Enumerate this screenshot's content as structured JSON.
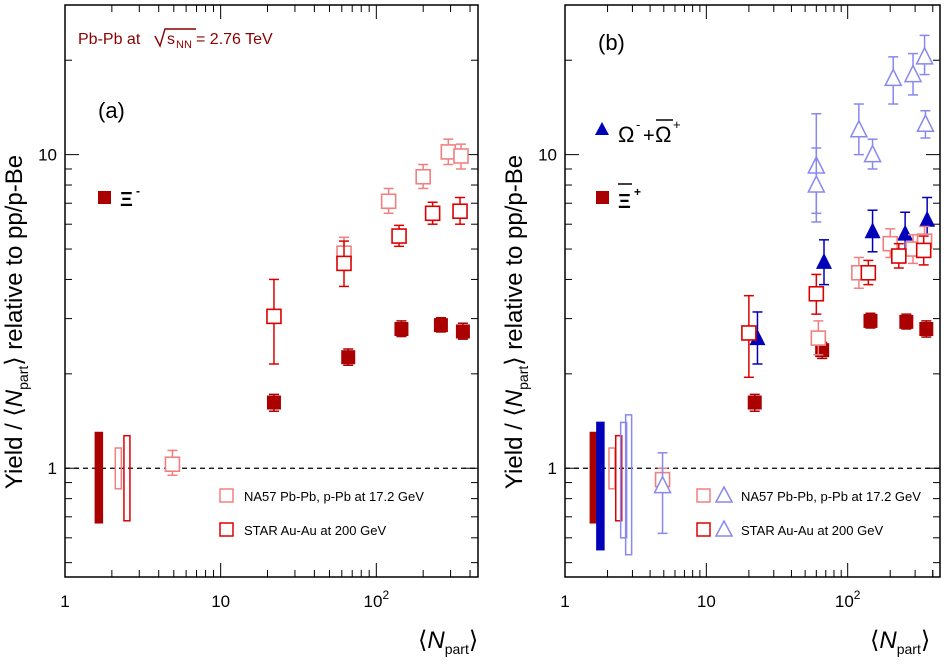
{
  "colors": {
    "alice": "#aa0000",
    "na57_xi": "#f08080",
    "star_xi": "#dd0000",
    "alice_omega": "#0000bb",
    "na57_omega": "#8888ee",
    "axis": "#000000",
    "energy_label": "#8b0000"
  },
  "labels": {
    "ylabel_prefix": "Yield / ⟨",
    "ylabel_var": "N",
    "ylabel_sub": "part",
    "ylabel_suffix": "⟩ relative to pp/p-Be",
    "xlabel_open": "⟨",
    "xlabel_var": "N",
    "xlabel_sub": "part",
    "xlabel_close": "⟩",
    "energy_pre": "Pb-Pb at ",
    "energy_s": "s",
    "energy_sub": "NN",
    "energy_post": " = 2.76 TeV",
    "tag_a": "(a)",
    "tag_b": "(b)",
    "leg_xi_minus": "Ξ",
    "leg_xi_minus_sup": "-",
    "leg_xi_plus": "Ξ",
    "leg_xi_plus_sup": "+",
    "leg_omega_a": "Ω",
    "leg_omega_a_sup": "-",
    "leg_omega_plus": "+",
    "leg_omega_b": "Ω",
    "leg_omega_b_sup": "+",
    "leg_na57": "NA57 Pb-Pb, p-Pb at 17.2 GeV",
    "leg_star": "STAR Au-Au at 200 GeV"
  },
  "chart_data": [
    {
      "panel": "a",
      "type": "scatter",
      "xscale": "log",
      "yscale": "log",
      "xlim": [
        1,
        450
      ],
      "ylim": [
        0.45,
        30
      ],
      "xticks": [
        {
          "v": 1,
          "label": "1"
        },
        {
          "v": 10,
          "label": "10"
        },
        {
          "v": 100,
          "label": "10",
          "sup": "2"
        }
      ],
      "yticks": [
        {
          "v": 1,
          "label": "1"
        },
        {
          "v": 10,
          "label": "10"
        }
      ],
      "reference_line": 1,
      "series": [
        {
          "name": "Ξ- (ALICE)",
          "marker": "filled-square",
          "color_key": "alice",
          "points": [
            {
              "x": 22,
              "y": 1.62,
              "lo": 1.52,
              "hi": 1.72
            },
            {
              "x": 66,
              "y": 2.26,
              "lo": 2.13,
              "hi": 2.4
            },
            {
              "x": 145,
              "y": 2.78,
              "lo": 2.63,
              "hi": 2.95
            },
            {
              "x": 260,
              "y": 2.86,
              "lo": 2.72,
              "hi": 3.02
            },
            {
              "x": 360,
              "y": 2.73,
              "lo": 2.58,
              "hi": 2.9
            }
          ]
        },
        {
          "name": "NA57 Ξ-",
          "marker": "open-square",
          "color_key": "na57_xi",
          "points": [
            {
              "x": 4.9,
              "y": 1.03,
              "lo": 0.95,
              "hi": 1.14
            },
            {
              "x": 62,
              "y": 4.85,
              "lo": 4.3,
              "hi": 5.45
            },
            {
              "x": 120,
              "y": 7.1,
              "lo": 6.5,
              "hi": 7.8
            },
            {
              "x": 200,
              "y": 8.5,
              "lo": 7.8,
              "hi": 9.3
            },
            {
              "x": 290,
              "y": 10.2,
              "lo": 9.3,
              "hi": 11.2
            },
            {
              "x": 350,
              "y": 9.9,
              "lo": 9.0,
              "hi": 10.8
            }
          ]
        },
        {
          "name": "STAR Ξ-",
          "marker": "open-square",
          "color_key": "star_xi",
          "points": [
            {
              "x": 22,
              "y": 3.05,
              "lo": 2.15,
              "hi": 4.0
            },
            {
              "x": 62,
              "y": 4.5,
              "lo": 3.8,
              "hi": 5.3
            },
            {
              "x": 140,
              "y": 5.5,
              "lo": 5.1,
              "hi": 5.95
            },
            {
              "x": 230,
              "y": 6.5,
              "lo": 6.0,
              "hi": 7.05
            },
            {
              "x": 345,
              "y": 6.6,
              "lo": 6.0,
              "hi": 7.3
            }
          ]
        }
      ],
      "normalization_boxes": [
        {
          "x": 1.65,
          "lo": 0.67,
          "hi": 1.3,
          "color_key": "alice",
          "style": "filled"
        },
        {
          "x": 2.2,
          "lo": 0.86,
          "hi": 1.16,
          "color_key": "na57_xi",
          "style": "open"
        },
        {
          "x": 2.5,
          "lo": 0.68,
          "hi": 1.27,
          "color_key": "star_xi",
          "style": "open"
        }
      ]
    },
    {
      "panel": "b",
      "type": "scatter",
      "xscale": "log",
      "yscale": "log",
      "xlim": [
        1,
        450
      ],
      "ylim": [
        0.45,
        30
      ],
      "xticks": [
        {
          "v": 1,
          "label": "1"
        },
        {
          "v": 10,
          "label": "10"
        },
        {
          "v": 100,
          "label": "10",
          "sup": "2"
        }
      ],
      "yticks": [
        {
          "v": 1,
          "label": "1"
        },
        {
          "v": 10,
          "label": "10"
        }
      ],
      "reference_line": 1,
      "series": [
        {
          "name": "Ξ+ (ALICE)",
          "marker": "filled-square",
          "color_key": "alice",
          "points": [
            {
              "x": 22,
              "y": 1.62,
              "lo": 1.52,
              "hi": 1.72
            },
            {
              "x": 66,
              "y": 2.38,
              "lo": 2.24,
              "hi": 2.52
            },
            {
              "x": 145,
              "y": 2.95,
              "lo": 2.8,
              "hi": 3.12
            },
            {
              "x": 260,
              "y": 2.93,
              "lo": 2.78,
              "hi": 3.1
            },
            {
              "x": 360,
              "y": 2.78,
              "lo": 2.62,
              "hi": 2.95
            }
          ]
        },
        {
          "name": "Ω- + Ω+ (ALICE)",
          "marker": "filled-triangle",
          "color_key": "alice_omega",
          "points": [
            {
              "x": 23,
              "y": 2.6,
              "lo": 2.15,
              "hi": 3.15
            },
            {
              "x": 68,
              "y": 4.55,
              "lo": 3.85,
              "hi": 5.35
            },
            {
              "x": 150,
              "y": 5.7,
              "lo": 4.9,
              "hi": 6.65
            },
            {
              "x": 255,
              "y": 5.6,
              "lo": 4.8,
              "hi": 6.55
            },
            {
              "x": 365,
              "y": 6.2,
              "lo": 5.3,
              "hi": 7.3
            }
          ]
        },
        {
          "name": "NA57 Ξ+",
          "marker": "open-square",
          "color_key": "na57_xi",
          "points": [
            {
              "x": 4.9,
              "y": 0.92,
              "lo": 0.85,
              "hi": 1.0
            },
            {
              "x": 62,
              "y": 2.6,
              "lo": 2.3,
              "hi": 2.95
            },
            {
              "x": 120,
              "y": 4.2,
              "lo": 3.75,
              "hi": 4.7
            },
            {
              "x": 200,
              "y": 5.2,
              "lo": 4.7,
              "hi": 5.8
            },
            {
              "x": 290,
              "y": 5.0,
              "lo": 4.5,
              "hi": 5.55
            },
            {
              "x": 350,
              "y": 5.3,
              "lo": 4.8,
              "hi": 5.9
            }
          ]
        },
        {
          "name": "STAR Ξ+",
          "marker": "open-square",
          "color_key": "star_xi",
          "points": [
            {
              "x": 20,
              "y": 2.7,
              "lo": 1.95,
              "hi": 3.55
            },
            {
              "x": 60,
              "y": 3.6,
              "lo": 3.1,
              "hi": 4.15
            },
            {
              "x": 140,
              "y": 4.2,
              "lo": 3.85,
              "hi": 4.6
            },
            {
              "x": 230,
              "y": 4.75,
              "lo": 4.35,
              "hi": 5.2
            },
            {
              "x": 345,
              "y": 4.95,
              "lo": 4.45,
              "hi": 5.5
            }
          ]
        },
        {
          "name": "NA57 Ω",
          "marker": "open-triangle",
          "color_key": "na57_omega",
          "points": [
            {
              "x": 4.9,
              "y": 0.88,
              "lo": 0.62,
              "hi": 1.12
            },
            {
              "x": 60,
              "y": 9.2,
              "lo": 6.5,
              "hi": 13.5
            },
            {
              "x": 60,
              "y": 8.0,
              "lo": 6.1,
              "hi": 10.5
            },
            {
              "x": 120,
              "y": 12.0,
              "lo": 10.0,
              "hi": 14.5
            },
            {
              "x": 150,
              "y": 10.0,
              "lo": 9.0,
              "hi": 11.2
            },
            {
              "x": 210,
              "y": 17.5,
              "lo": 14.5,
              "hi": 20.5
            },
            {
              "x": 290,
              "y": 18.0,
              "lo": 15.5,
              "hi": 21.0
            },
            {
              "x": 350,
              "y": 20.5,
              "lo": 18.0,
              "hi": 24.0
            },
            {
              "x": 355,
              "y": 12.5,
              "lo": 11.3,
              "hi": 13.8
            }
          ]
        }
      ],
      "normalization_boxes": [
        {
          "x": 1.6,
          "lo": 0.67,
          "hi": 1.3,
          "color_key": "alice",
          "style": "filled"
        },
        {
          "x": 1.78,
          "lo": 0.55,
          "hi": 1.4,
          "color_key": "alice_omega",
          "style": "filled"
        },
        {
          "x": 2.15,
          "lo": 0.86,
          "hi": 1.16,
          "color_key": "na57_xi",
          "style": "open"
        },
        {
          "x": 2.4,
          "lo": 0.68,
          "hi": 1.27,
          "color_key": "star_xi",
          "style": "open"
        },
        {
          "x": 2.6,
          "lo": 0.6,
          "hi": 1.4,
          "color_key": "na57_omega",
          "style": "open"
        },
        {
          "x": 2.82,
          "lo": 0.53,
          "hi": 1.48,
          "color_key": "na57_omega",
          "style": "open"
        }
      ]
    }
  ]
}
